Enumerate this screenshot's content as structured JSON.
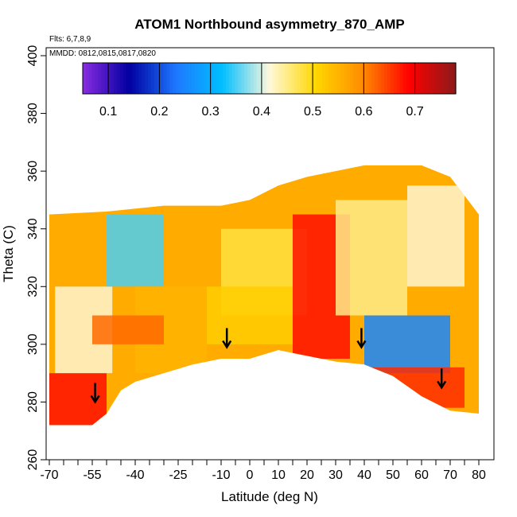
{
  "chart_data": {
    "type": "heatmap",
    "title": "ATOM1 Northbound asymmetry_870_AMP",
    "annotations": [
      "Flts: 6,7,8,9",
      "MMDD: 0812,0815,0817,0820"
    ],
    "xlabel": "Latitude (deg N)",
    "ylabel": "Theta (C)",
    "xlim": [
      -70,
      80
    ],
    "ylim": [
      260,
      400
    ],
    "x_tick_labels": [
      "-70",
      "-55",
      "-40",
      "-25",
      "-10",
      "0",
      "10",
      "20",
      "30",
      "40",
      "50",
      "60",
      "70",
      "80"
    ],
    "y_tick_labels": [
      "260",
      "280",
      "300",
      "320",
      "340",
      "360",
      "380",
      "400"
    ],
    "colorbar": {
      "range": [
        0.05,
        0.78
      ],
      "tick_labels": [
        "0.1",
        "0.2",
        "0.3",
        "0.4",
        "0.5",
        "0.6",
        "0.7"
      ],
      "tick_values": [
        0.1,
        0.2,
        0.3,
        0.4,
        0.5,
        0.6,
        0.7
      ],
      "colors": [
        "#8a2be2",
        "#0000a0",
        "#1e78ff",
        "#00bfff",
        "#fff8dc",
        "#ffd700",
        "#ff8c00",
        "#ff0000",
        "#8b1a1a"
      ]
    },
    "coverage_bottom": [
      [
        -70,
        272
      ],
      [
        -55,
        272
      ],
      [
        -50,
        276
      ],
      [
        -45,
        284
      ],
      [
        -40,
        287
      ],
      [
        -30,
        290
      ],
      [
        -20,
        293
      ],
      [
        -10,
        295
      ],
      [
        0,
        295
      ],
      [
        10,
        298
      ],
      [
        20,
        296
      ],
      [
        30,
        294
      ],
      [
        40,
        293
      ],
      [
        50,
        289
      ],
      [
        60,
        282
      ],
      [
        70,
        277
      ],
      [
        80,
        276
      ]
    ],
    "coverage_top": [
      [
        -70,
        345
      ],
      [
        -50,
        346
      ],
      [
        -30,
        348
      ],
      [
        -10,
        348
      ],
      [
        0,
        350
      ],
      [
        10,
        355
      ],
      [
        20,
        358
      ],
      [
        30,
        360
      ],
      [
        40,
        362
      ],
      [
        50,
        362
      ],
      [
        60,
        362
      ],
      [
        70,
        358
      ],
      [
        80,
        345
      ]
    ],
    "regions": [
      {
        "lat": [
          -70,
          -50
        ],
        "theta": [
          272,
          290
        ],
        "value": 0.68
      },
      {
        "lat": [
          -68,
          -48
        ],
        "theta": [
          290,
          320
        ],
        "value": 0.42
      },
      {
        "lat": [
          -50,
          -30
        ],
        "theta": [
          320,
          345
        ],
        "value": 0.35
      },
      {
        "lat": [
          -40,
          -15
        ],
        "theta": [
          290,
          320
        ],
        "value": 0.55
      },
      {
        "lat": [
          -10,
          20
        ],
        "theta": [
          310,
          340
        ],
        "value": 0.48
      },
      {
        "lat": [
          15,
          35
        ],
        "theta": [
          295,
          345
        ],
        "value": 0.68
      },
      {
        "lat": [
          -15,
          15
        ],
        "theta": [
          300,
          320
        ],
        "value": 0.52
      },
      {
        "lat": [
          30,
          55
        ],
        "theta": [
          310,
          350
        ],
        "value": 0.45
      },
      {
        "lat": [
          40,
          70
        ],
        "theta": [
          290,
          310
        ],
        "value": 0.25
      },
      {
        "lat": [
          55,
          75
        ],
        "theta": [
          320,
          355
        ],
        "value": 0.42
      },
      {
        "lat": [
          -55,
          -30
        ],
        "theta": [
          300,
          310
        ],
        "value": 0.62
      },
      {
        "lat": [
          40,
          75
        ],
        "theta": [
          278,
          292
        ],
        "value": 0.66
      }
    ],
    "arrows": [
      {
        "lat": -54,
        "theta": 280
      },
      {
        "lat": -8,
        "theta": 299
      },
      {
        "lat": 39,
        "theta": 299
      },
      {
        "lat": 67,
        "theta": 285
      }
    ],
    "grid": false,
    "legend": "top"
  }
}
